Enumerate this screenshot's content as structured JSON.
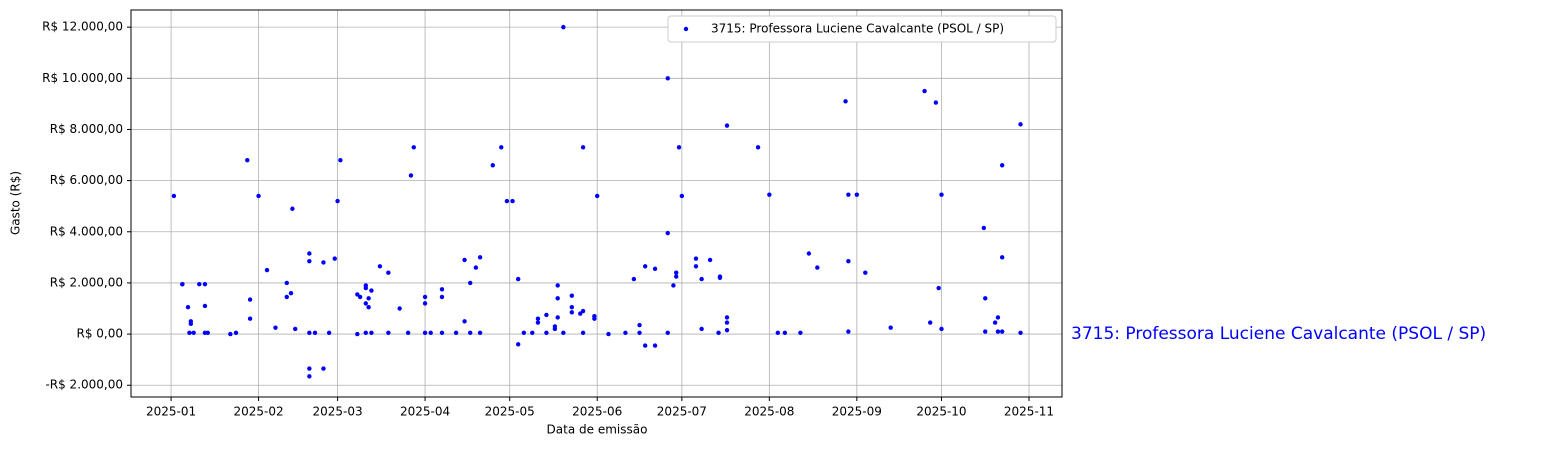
{
  "chart_data": {
    "type": "scatter",
    "xlabel": "Data de emissão",
    "ylabel": "Gasto (R$)",
    "annotation": "3715: Professora Luciene Cavalcante (PSOL / SP)",
    "legend": "upper right",
    "grid": true,
    "xlim": [
      -14.2,
      315.7
    ],
    "ylim": [
      -2460,
      12670
    ],
    "xticks": [
      {
        "value": 0,
        "label": "2025-01"
      },
      {
        "value": 31,
        "label": "2025-02"
      },
      {
        "value": 59,
        "label": "2025-03"
      },
      {
        "value": 90,
        "label": "2025-04"
      },
      {
        "value": 120,
        "label": "2025-05"
      },
      {
        "value": 151,
        "label": "2025-06"
      },
      {
        "value": 181,
        "label": "2025-07"
      },
      {
        "value": 212,
        "label": "2025-08"
      },
      {
        "value": 243,
        "label": "2025-09"
      },
      {
        "value": 273,
        "label": "2025-10"
      },
      {
        "value": 304,
        "label": "2025-11"
      }
    ],
    "yticks": [
      {
        "value": -2000,
        "label": "-R$ 2.000,00"
      },
      {
        "value": 0,
        "label": "R$ 0,00"
      },
      {
        "value": 2000,
        "label": "R$ 2.000,00"
      },
      {
        "value": 4000,
        "label": "R$ 4.000,00"
      },
      {
        "value": 6000,
        "label": "R$ 6.000,00"
      },
      {
        "value": 8000,
        "label": "R$ 8.000,00"
      },
      {
        "value": 10000,
        "label": "R$ 10.000,00"
      },
      {
        "value": 12000,
        "label": "R$ 12.000,00"
      }
    ],
    "series": [
      {
        "name": "3715: Professora Luciene Cavalcante (PSOL / SP)",
        "color": "#0000ff",
        "x": [
          1,
          4,
          4,
          6,
          6.5,
          7,
          7,
          8,
          10,
          12,
          12,
          12,
          13,
          21,
          23,
          27,
          28,
          28,
          31,
          34,
          37,
          41,
          41,
          42.5,
          43,
          44,
          49,
          49,
          49,
          49,
          49,
          51,
          54,
          54,
          56,
          58,
          59,
          60,
          66,
          66,
          67,
          69,
          69,
          69,
          69,
          70,
          70,
          71,
          71,
          74,
          77,
          77,
          81,
          84,
          85,
          86,
          90,
          90,
          90,
          92,
          96,
          96,
          96,
          101,
          104,
          104,
          106,
          106,
          108,
          109.5,
          109.5,
          114,
          117,
          119,
          121,
          123,
          123,
          125,
          128,
          130,
          130,
          133,
          133,
          136,
          136,
          137,
          137,
          137,
          139,
          139,
          142,
          142,
          142,
          145,
          146,
          146,
          146,
          150,
          150,
          151,
          155,
          161,
          164,
          166,
          166,
          168,
          168,
          171.5,
          171.5,
          176,
          176,
          176,
          178,
          179,
          179,
          180,
          181,
          186,
          186,
          188,
          188,
          191,
          194,
          194.5,
          194.5,
          197,
          197,
          197,
          197,
          208,
          212,
          215,
          217.5,
          223,
          226,
          229,
          239,
          240,
          240,
          240,
          243,
          246,
          255,
          267,
          269,
          271,
          272,
          273,
          273,
          288,
          288.5,
          288.5,
          292,
          293,
          293,
          294.5,
          294.5,
          294.5,
          301,
          301
        ],
        "values": [
          5400,
          1950,
          1950,
          1050,
          50,
          500,
          400,
          50,
          1950,
          1950,
          1100,
          50,
          50,
          0,
          50,
          6800,
          1350,
          600,
          5400,
          2500,
          250,
          1450,
          2000,
          1600,
          4900,
          200,
          3150,
          2850,
          50,
          -1350,
          -1650,
          50,
          2800,
          -1350,
          50,
          2950,
          5200,
          6800,
          1550,
          0,
          1450,
          1900,
          1800,
          1200,
          50,
          1050,
          1400,
          1700,
          50,
          2650,
          2400,
          50,
          1000,
          50,
          6200,
          7300,
          1450,
          1200,
          50,
          50,
          1750,
          1450,
          50,
          50,
          2900,
          500,
          2000,
          50,
          2600,
          3000,
          50,
          6600,
          7300,
          5200,
          5200,
          2150,
          -400,
          50,
          50,
          600,
          450,
          50,
          750,
          300,
          200,
          1900,
          1400,
          650,
          12000,
          50,
          1500,
          1050,
          850,
          800,
          7300,
          900,
          50,
          700,
          600,
          5400,
          0,
          50,
          2150,
          350,
          50,
          2650,
          -450,
          2550,
          -450,
          10000,
          3950,
          50,
          1900,
          2250,
          2400,
          7300,
          5400,
          2650,
          2950,
          2150,
          200,
          2900,
          50,
          2200,
          2250,
          8150,
          650,
          450,
          150,
          7300,
          5450,
          50,
          50,
          50,
          3150,
          2600,
          9100,
          5450,
          2850,
          100,
          5450,
          2400,
          250,
          9500,
          450,
          9050,
          1800,
          5450,
          200,
          4150,
          1400,
          100,
          450,
          650,
          100,
          6600,
          3000,
          100,
          8200,
          50
        ]
      }
    ]
  }
}
